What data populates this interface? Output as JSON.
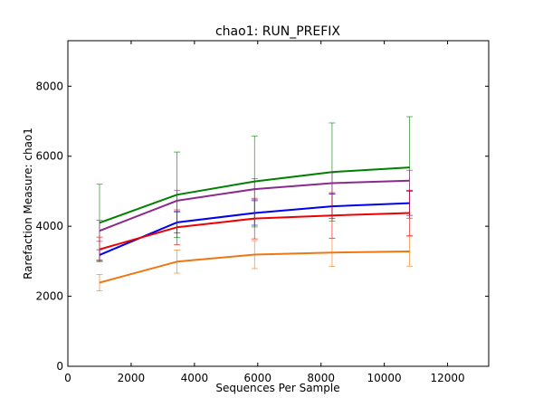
{
  "chart_data": {
    "type": "line",
    "title": "chao1: RUN_PREFIX",
    "xlabel": "Sequences Per Sample",
    "ylabel": "Rarefaction Measure: chao1",
    "xlim": [
      0,
      13300
    ],
    "ylim": [
      0,
      9300
    ],
    "xticks": [
      0,
      2000,
      4000,
      6000,
      8000,
      10000,
      12000
    ],
    "yticks": [
      0,
      2000,
      4000,
      6000,
      8000
    ],
    "grid": false,
    "x": [
      1000,
      3450,
      5900,
      8350,
      10800
    ],
    "series": [
      {
        "color": "#008000",
        "values": [
          4100,
          4900,
          5280,
          5550,
          5680
        ],
        "err": [
          1100,
          1220,
          1300,
          1400,
          1450
        ]
      },
      {
        "color": "#8B2A8B",
        "values": [
          3870,
          4730,
          5060,
          5230,
          5300
        ],
        "err": [
          300,
          300,
          300,
          300,
          300
        ]
      },
      {
        "color": "#0000EE",
        "values": [
          3180,
          4110,
          4380,
          4570,
          4660
        ],
        "err": [
          150,
          300,
          350,
          350,
          350
        ]
      },
      {
        "color": "#EE0000",
        "values": [
          3340,
          3970,
          4220,
          4310,
          4380
        ],
        "err": [
          350,
          500,
          580,
          650,
          650
        ]
      },
      {
        "color": "#EE7711",
        "values": [
          2390,
          2990,
          3190,
          3250,
          3280
        ],
        "err": [
          230,
          330,
          400,
          400,
          420
        ]
      }
    ]
  }
}
